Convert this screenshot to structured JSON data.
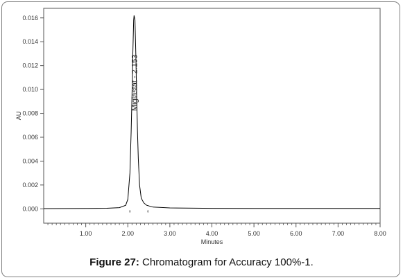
{
  "caption": {
    "label": "Figure 27:",
    "text": "Chromatogram for Accuracy 100%-1."
  },
  "chart_data": {
    "type": "line",
    "xlabel": "Minutes",
    "ylabel": "AU",
    "xlim": [
      0,
      8.0
    ],
    "ylim": [
      -0.0012,
      0.0168
    ],
    "x_ticks": [
      1.0,
      2.0,
      3.0,
      4.0,
      5.0,
      6.0,
      7.0,
      8.0
    ],
    "x_tick_labels": [
      "1.00",
      "2.00",
      "3.00",
      "4.00",
      "5.00",
      "6.00",
      "7.00",
      "8.00"
    ],
    "y_ticks": [
      0.0,
      0.002,
      0.004,
      0.006,
      0.008,
      0.01,
      0.012,
      0.014,
      0.016
    ],
    "y_tick_labels": [
      "0.000",
      "0.002",
      "0.004",
      "0.006",
      "0.008",
      "0.010",
      "0.012",
      "0.014",
      "0.016"
    ],
    "grid": false,
    "line_color": "#000000",
    "series": [
      {
        "x": [
          0.0,
          1.0,
          1.5,
          1.8,
          1.95,
          2.0,
          2.05,
          2.08,
          2.1,
          2.12,
          2.14,
          2.15,
          2.17,
          2.19,
          2.21,
          2.23,
          2.25,
          2.28,
          2.32,
          2.38,
          2.45,
          2.6,
          3.0,
          4.0,
          5.0,
          6.0,
          7.0,
          8.0
        ],
        "y": [
          2e-05,
          3e-05,
          5e-05,
          0.0001,
          0.0003,
          0.0008,
          0.003,
          0.0065,
          0.0095,
          0.013,
          0.0158,
          0.0162,
          0.0158,
          0.013,
          0.0095,
          0.0065,
          0.0042,
          0.002,
          0.0009,
          0.0005,
          0.0003,
          0.00015,
          8e-05,
          4e-05,
          3e-05,
          3e-05,
          3e-05,
          3e-05
        ]
      }
    ],
    "peak_annotation": {
      "text": "Miglastat - 2.153",
      "x": 2.153,
      "y": 0.0082
    },
    "integration_markers": [
      {
        "x": 2.05,
        "label": "o"
      },
      {
        "x": 2.48,
        "label": "o"
      }
    ]
  }
}
